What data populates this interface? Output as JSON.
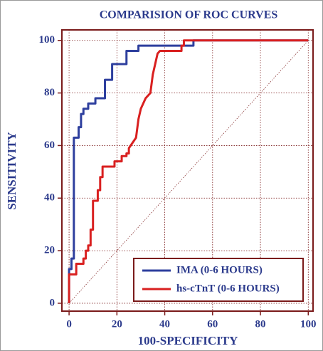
{
  "chart_data": {
    "type": "line",
    "title": "COMPARISION OF ROC CURVES",
    "xlabel": "100-SPECIFICITY",
    "ylabel": "SENSITIVITY",
    "xlim": [
      -3,
      102
    ],
    "ylim": [
      -3,
      104
    ],
    "xticks": [
      0,
      20,
      40,
      60,
      80,
      100
    ],
    "yticks": [
      0,
      20,
      40,
      60,
      80,
      100
    ],
    "grid": true,
    "diagonal": true,
    "legend": "lower right",
    "series": [
      {
        "name": "IMA (0-6 HOURS)",
        "color": "#2e3f9e",
        "x": [
          0,
          0,
          1,
          1,
          2,
          2,
          4,
          4,
          5,
          5,
          6,
          6,
          8,
          8,
          11,
          11,
          15,
          15,
          18,
          18,
          24,
          24,
          29,
          29,
          52,
          52,
          100
        ],
        "values": [
          0,
          13,
          13,
          17,
          17,
          63,
          63,
          67,
          67,
          72,
          72,
          74,
          74,
          76,
          76,
          78,
          78,
          85,
          85,
          91,
          91,
          96,
          96,
          98,
          98,
          100,
          100
        ]
      },
      {
        "name": "hs-cTnT (0-6 HOURS)",
        "color": "#d92020",
        "x": [
          0,
          0,
          3,
          3,
          6,
          6,
          7,
          7,
          8,
          8,
          9,
          9,
          10,
          10,
          12,
          12,
          13,
          13,
          14,
          14,
          19,
          19,
          22,
          22,
          24,
          24,
          25,
          25,
          28,
          29,
          30,
          32,
          34,
          35,
          36,
          37,
          38,
          47,
          47,
          48,
          48,
          100
        ],
        "values": [
          0,
          11,
          11,
          15,
          15,
          17,
          17,
          20,
          20,
          22,
          22,
          28,
          28,
          39,
          39,
          43,
          43,
          48,
          48,
          52,
          52,
          54,
          54,
          56,
          56,
          57,
          57,
          59,
          63,
          70,
          74,
          78,
          80,
          87,
          91,
          95,
          96,
          96,
          98,
          98,
          100,
          100
        ]
      }
    ]
  }
}
